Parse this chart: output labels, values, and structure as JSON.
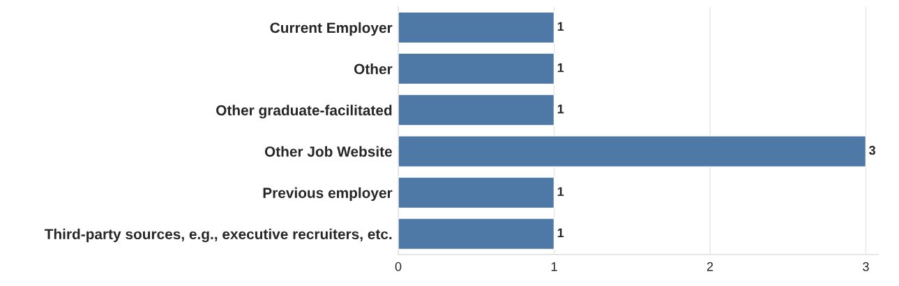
{
  "chart_data": {
    "type": "bar",
    "orientation": "horizontal",
    "categories": [
      "Current Employer",
      "Other",
      "Other graduate-facilitated",
      "Other Job Website",
      "Previous employer",
      "Third-party sources, e.g., executive recruiters, etc."
    ],
    "values": [
      1,
      1,
      1,
      3,
      1,
      1
    ],
    "color": "#4e79a7",
    "xlim": [
      0,
      3.08
    ],
    "xticks": [
      0,
      1,
      2,
      3
    ],
    "grid": "x",
    "data_labels": true
  }
}
